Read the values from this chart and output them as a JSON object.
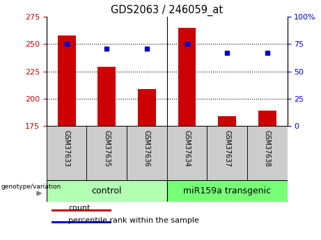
{
  "title": "GDS2063 / 246059_at",
  "samples": [
    "GSM37633",
    "GSM37635",
    "GSM37636",
    "GSM37634",
    "GSM37637",
    "GSM37638"
  ],
  "bar_values": [
    258,
    229,
    209,
    265,
    184,
    189
  ],
  "bar_baseline": 175,
  "percentile_values": [
    75,
    71,
    71,
    75,
    67,
    67
  ],
  "ylim_left": [
    175,
    275
  ],
  "ylim_right": [
    0,
    100
  ],
  "yticks_left": [
    175,
    200,
    225,
    250,
    275
  ],
  "yticks_right": [
    0,
    25,
    50,
    75,
    100
  ],
  "ytick_labels_right": [
    "0",
    "25",
    "50",
    "75",
    "100%"
  ],
  "bar_color": "#cc0000",
  "dot_color": "#0000cc",
  "group1_label": "control",
  "group2_label": "miR159a transgenic",
  "group1_color": "#b3ffb3",
  "group2_color": "#77ff77",
  "legend_count_label": "count",
  "legend_pct_label": "percentile rank within the sample",
  "genotype_label": "genotype/variation",
  "bar_width": 0.45,
  "bg_color": "#ffffff",
  "plot_bg": "#ffffff",
  "tick_label_color_left": "#cc0000",
  "tick_label_color_right": "#0000cc",
  "hgrid_ticks": [
    200,
    225,
    250
  ],
  "label_bg": "#cccccc"
}
